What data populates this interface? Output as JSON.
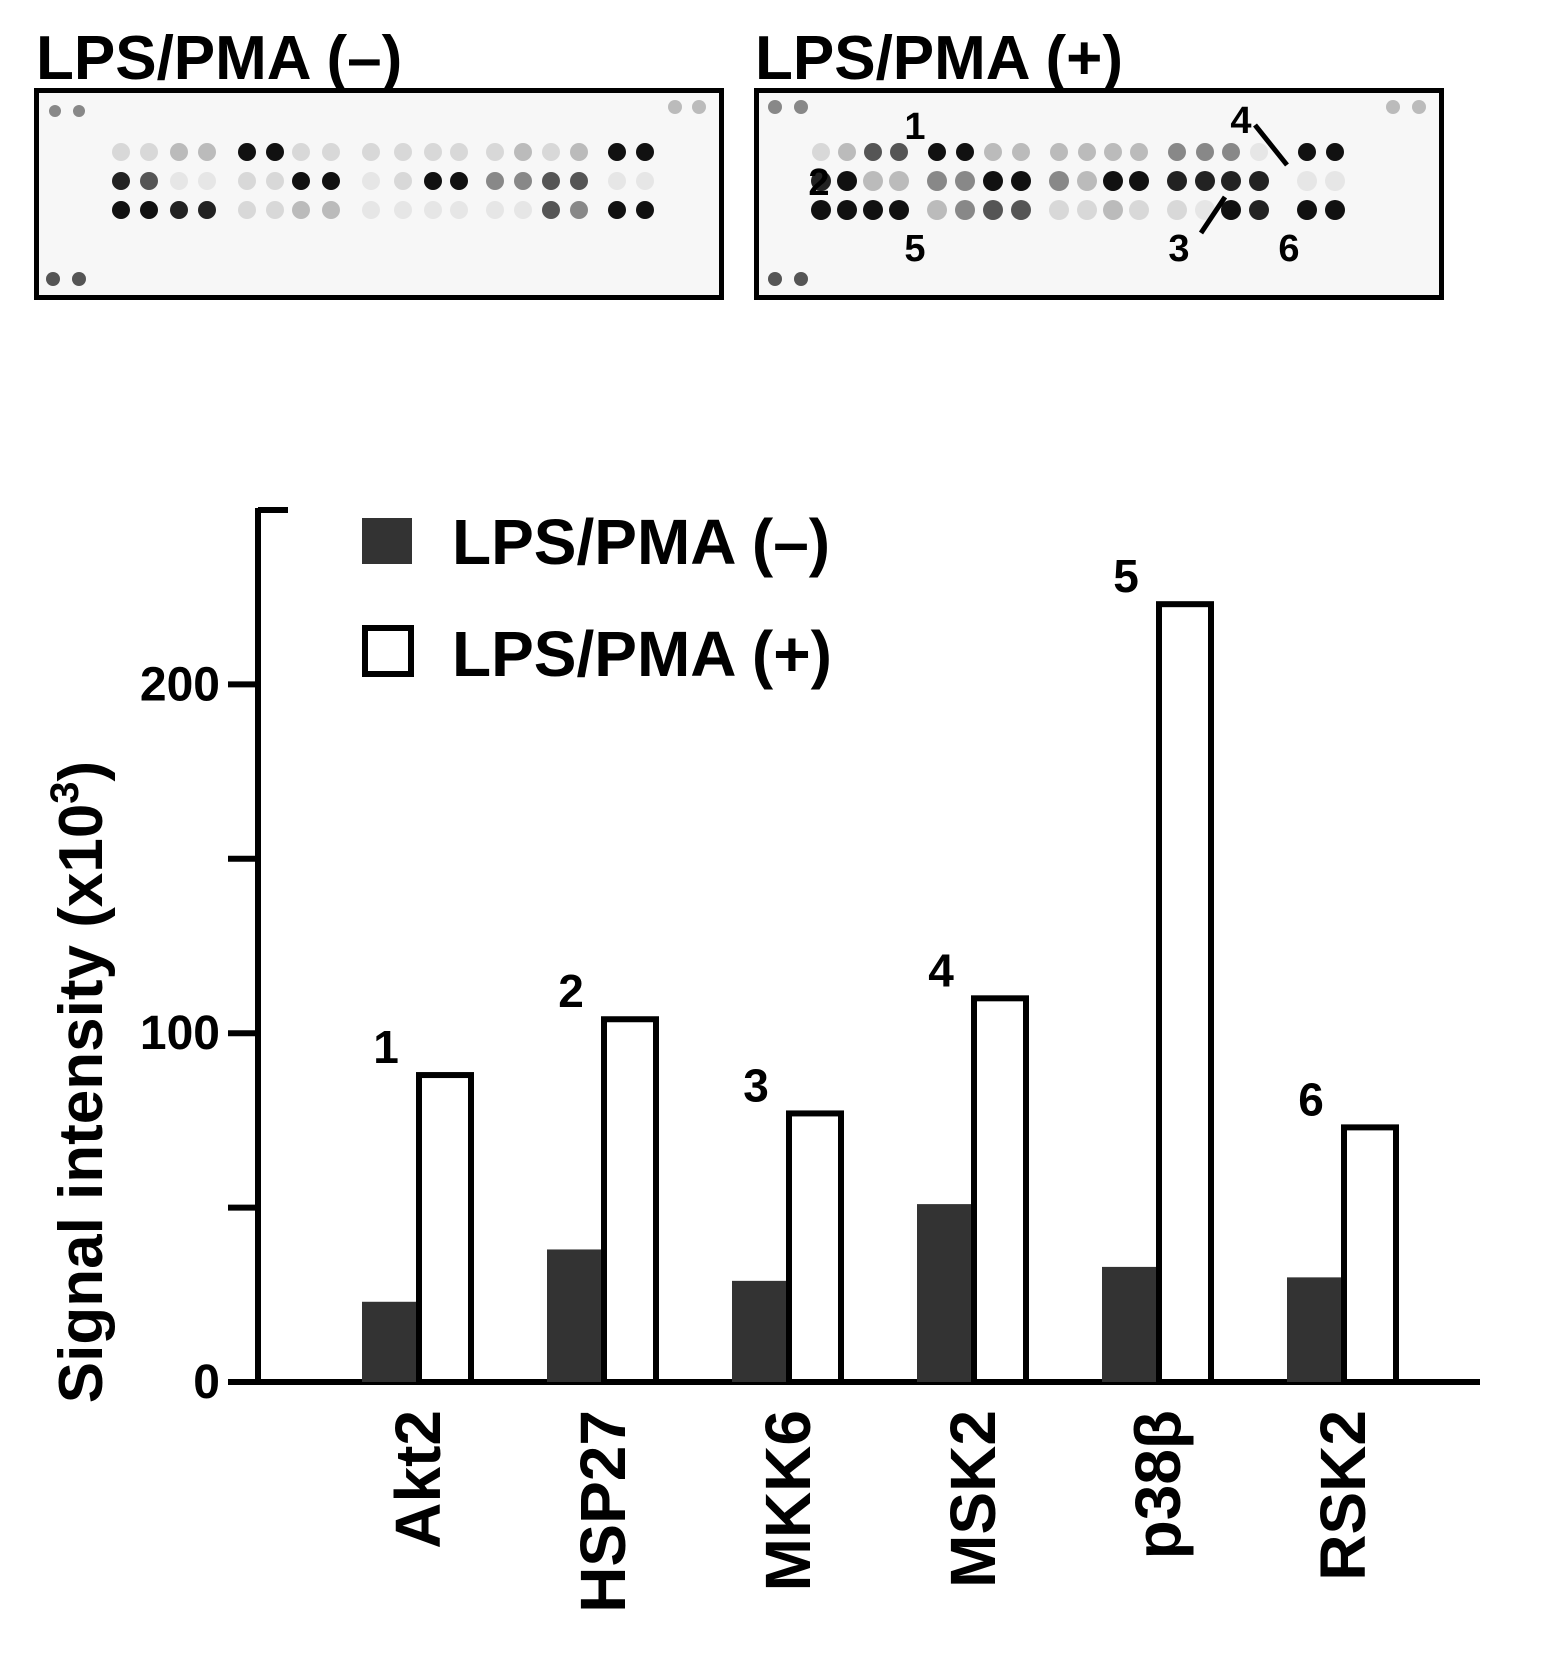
{
  "blots": [
    {
      "title": "LPS/PMA (–)",
      "labels": []
    },
    {
      "title": "LPS/PMA (+)",
      "labels": [
        "1",
        "2",
        "3",
        "4",
        "5",
        "6"
      ]
    }
  ],
  "chart_data": {
    "type": "bar",
    "categories": [
      "Akt2",
      "HSP27",
      "MKK6",
      "MSK2",
      "p38β",
      "RSK2"
    ],
    "series": [
      {
        "name": "LPS/PMA (–)",
        "values": [
          23,
          38,
          29,
          51,
          33,
          30
        ],
        "color": "#333333",
        "filled": true
      },
      {
        "name": "LPS/PMA (+)",
        "values": [
          88,
          104,
          77,
          110,
          223,
          73
        ],
        "color": "#ffffff",
        "filled": false
      }
    ],
    "bar_labels": [
      "1",
      "2",
      "3",
      "4",
      "5",
      "6"
    ],
    "ylabel": "Signal intensity (x10",
    "ylabel_superscript": "3",
    "ylabel_suffix": ")",
    "yticks": [
      0,
      100,
      200
    ],
    "minor_yticks": [
      50,
      150
    ],
    "ylim": [
      0,
      250
    ],
    "legend_position": "top-left",
    "grid": false
  }
}
